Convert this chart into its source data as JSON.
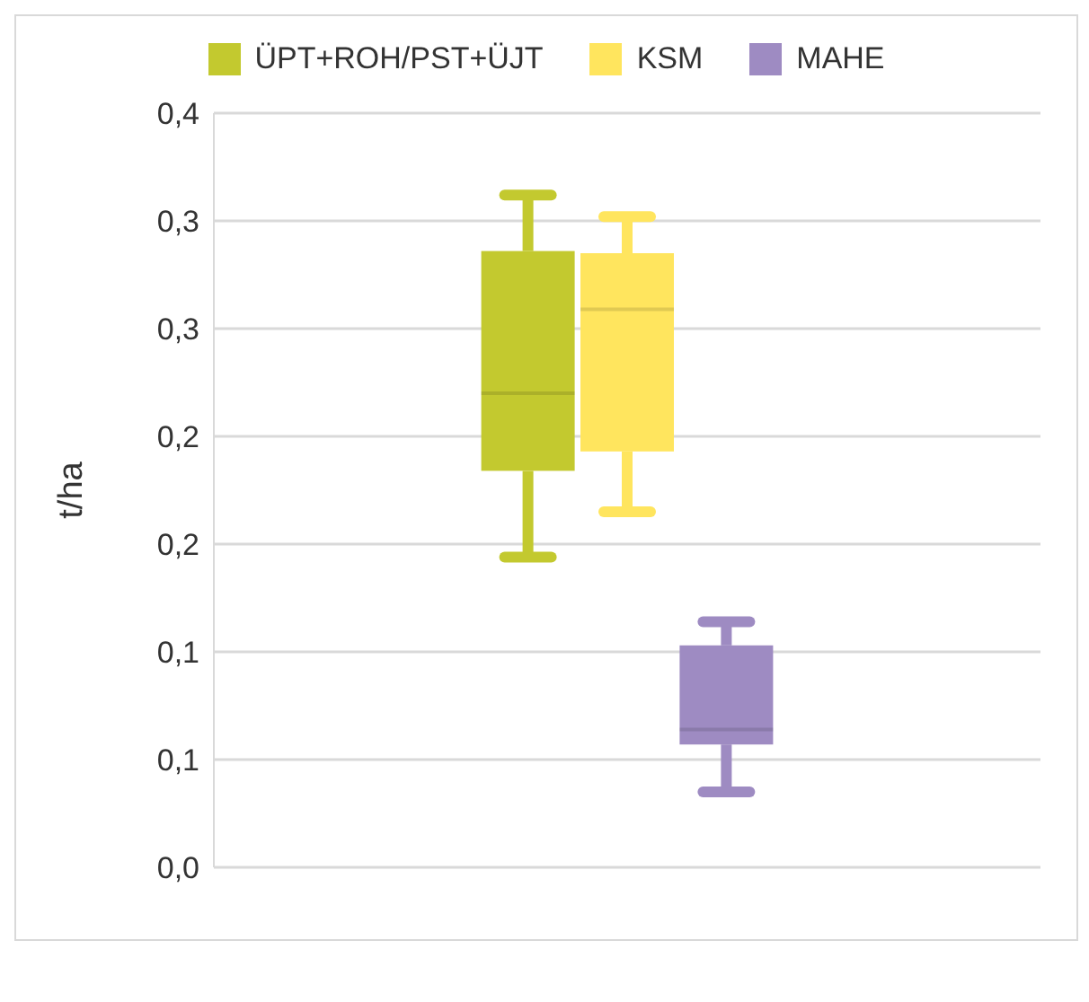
{
  "chart_data": {
    "type": "box",
    "ylabel": "t/ha",
    "categories": [
      null
    ],
    "ylim": [
      0,
      0.35
    ],
    "yticks": [
      {
        "value": 0,
        "label": "0,0"
      },
      {
        "value": 0.05,
        "label": "0,1"
      },
      {
        "value": 0.1,
        "label": "0,1"
      },
      {
        "value": 0.15,
        "label": "0,2"
      },
      {
        "value": 0.2,
        "label": "0,2"
      },
      {
        "value": 0.25,
        "label": "0,3"
      },
      {
        "value": 0.3,
        "label": "0,3"
      },
      {
        "value": 0.35,
        "label": "0,4"
      }
    ],
    "grid": "y",
    "legend": "top",
    "tick_labels": "y",
    "series": [
      {
        "name": "ÜPT+ROH/PST+ÜJT",
        "color": "#c3c92f",
        "boxes": [
          {
            "low": 0.144,
            "q1": 0.184,
            "median": 0.22,
            "q3": 0.286,
            "high": 0.312
          }
        ]
      },
      {
        "name": "KSM",
        "color": "#ffe55e",
        "boxes": [
          {
            "low": 0.165,
            "q1": 0.193,
            "median": 0.259,
            "q3": 0.285,
            "high": 0.302
          }
        ]
      },
      {
        "name": "MAHE",
        "color": "#9e8bc2",
        "boxes": [
          {
            "low": 0.035,
            "q1": 0.057,
            "median": 0.064,
            "q3": 0.103,
            "high": 0.114
          }
        ]
      }
    ]
  }
}
